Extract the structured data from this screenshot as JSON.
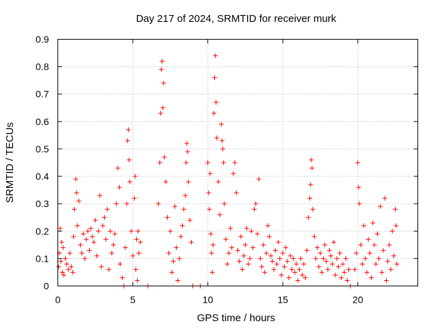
{
  "chart_data": {
    "type": "scatter",
    "title": "Day 217 of 2024, SRMTID for receiver murk",
    "xlabel": "GPS time / hours",
    "ylabel": "SRMTID / TECUs",
    "xlim": [
      0,
      24
    ],
    "ylim": [
      0,
      0.9
    ],
    "xticks": [
      0,
      5,
      10,
      15,
      20
    ],
    "xtick_labels": [
      "0",
      "5",
      "10",
      "15",
      "20"
    ],
    "yticks": [
      0,
      0.1,
      0.2,
      0.3,
      0.4,
      0.5,
      0.6,
      0.7,
      0.8,
      0.9
    ],
    "ytick_labels": [
      "0",
      "0.1",
      "0.2",
      "0.3",
      "0.4",
      "0.5",
      "0.6",
      "0.7",
      "0.8",
      "0.9"
    ],
    "grid": true,
    "marker": "plus",
    "color": "#ff0000",
    "series": [
      {
        "points": [
          [
            0.05,
            0.07
          ],
          [
            0.1,
            0.12
          ],
          [
            0.15,
            0.21
          ],
          [
            0.2,
            0.09
          ],
          [
            0.25,
            0.16
          ],
          [
            0.3,
            0.05
          ],
          [
            0.35,
            0.14
          ],
          [
            0.4,
            0.04
          ],
          [
            0.5,
            0.1
          ],
          [
            0.6,
            0.08
          ],
          [
            0.7,
            0.06
          ],
          [
            0.8,
            0.12
          ],
          [
            0.9,
            0.07
          ],
          [
            1.0,
            0.05
          ],
          [
            1.05,
            0.18
          ],
          [
            1.1,
            0.28
          ],
          [
            1.2,
            0.39
          ],
          [
            1.25,
            0.34
          ],
          [
            1.3,
            0.22
          ],
          [
            1.4,
            0.31
          ],
          [
            1.5,
            0.15
          ],
          [
            1.6,
            0.12
          ],
          [
            1.7,
            0.19
          ],
          [
            1.8,
            0.1
          ],
          [
            1.9,
            0.17
          ],
          [
            2.0,
            0.2
          ],
          [
            2.1,
            0.13
          ],
          [
            2.2,
            0.21
          ],
          [
            2.3,
            0.18
          ],
          [
            2.4,
            0.16
          ],
          [
            2.5,
            0.24
          ],
          [
            2.6,
            0.11
          ],
          [
            2.7,
            0.2
          ],
          [
            2.8,
            0.33
          ],
          [
            2.9,
            0.07
          ],
          [
            3.0,
            0.22
          ],
          [
            3.1,
            0.25
          ],
          [
            3.2,
            0.17
          ],
          [
            3.3,
            0.28
          ],
          [
            3.4,
            0.06
          ],
          [
            3.5,
            0.2
          ],
          [
            3.6,
            0.12
          ],
          [
            3.7,
            0.15
          ],
          [
            3.8,
            0.19
          ],
          [
            3.9,
            0.3
          ],
          [
            4.0,
            0.43
          ],
          [
            4.1,
            0.36
          ],
          [
            4.15,
            0.08
          ],
          [
            4.3,
            0.03
          ],
          [
            4.4,
            0.0
          ],
          [
            4.5,
            0.14
          ],
          [
            4.6,
            0.3
          ],
          [
            4.65,
            0.53
          ],
          [
            4.7,
            0.57
          ],
          [
            4.75,
            0.46
          ],
          [
            4.8,
            0.38
          ],
          [
            4.9,
            0.2
          ],
          [
            5.0,
            0.11
          ],
          [
            5.1,
            0.32
          ],
          [
            5.15,
            0.4
          ],
          [
            5.2,
            0.06
          ],
          [
            5.25,
            0.17
          ],
          [
            5.3,
            0.02
          ],
          [
            5.35,
            0.2
          ],
          [
            5.4,
            0.12
          ],
          [
            5.5,
            0.16
          ],
          [
            6.0,
            0.0
          ],
          [
            6.7,
            0.3
          ],
          [
            6.8,
            0.45
          ],
          [
            6.85,
            0.63
          ],
          [
            6.9,
            0.79
          ],
          [
            6.95,
            0.82
          ],
          [
            7.0,
            0.65
          ],
          [
            7.05,
            0.74
          ],
          [
            7.1,
            0.47
          ],
          [
            7.2,
            0.38
          ],
          [
            7.3,
            0.25
          ],
          [
            7.4,
            0.12
          ],
          [
            7.5,
            0.2
          ],
          [
            7.6,
            0.05
          ],
          [
            7.7,
            0.09
          ],
          [
            7.8,
            0.29
          ],
          [
            7.9,
            0.14
          ],
          [
            8.0,
            0.02
          ],
          [
            8.1,
            0.1
          ],
          [
            8.2,
            0.18
          ],
          [
            8.3,
            0.22
          ],
          [
            8.4,
            0.28
          ],
          [
            8.5,
            0.33
          ],
          [
            8.55,
            0.45
          ],
          [
            8.6,
            0.52
          ],
          [
            8.65,
            0.49
          ],
          [
            8.7,
            0.38
          ],
          [
            8.8,
            0.24
          ],
          [
            8.9,
            0.16
          ],
          [
            9.0,
            0.0
          ],
          [
            9.5,
            0.0
          ],
          [
            10.0,
            0.45
          ],
          [
            10.05,
            0.34
          ],
          [
            10.1,
            0.28
          ],
          [
            10.15,
            0.41
          ],
          [
            10.2,
            0.19
          ],
          [
            10.25,
            0.12
          ],
          [
            10.3,
            0.05
          ],
          [
            10.35,
            0.15
          ],
          [
            10.4,
            0.63
          ],
          [
            10.45,
            0.76
          ],
          [
            10.5,
            0.84
          ],
          [
            10.55,
            0.67
          ],
          [
            10.6,
            0.54
          ],
          [
            10.7,
            0.38
          ],
          [
            10.8,
            0.26
          ],
          [
            10.9,
            0.59
          ],
          [
            10.95,
            0.53
          ],
          [
            11.0,
            0.5
          ],
          [
            11.05,
            0.45
          ],
          [
            11.1,
            0.3
          ],
          [
            11.2,
            0.17
          ],
          [
            11.3,
            0.08
          ],
          [
            11.4,
            0.12
          ],
          [
            11.5,
            0.21
          ],
          [
            11.6,
            0.14
          ],
          [
            11.7,
            0.41
          ],
          [
            11.8,
            0.45
          ],
          [
            11.9,
            0.34
          ],
          [
            12.0,
            0.13
          ],
          [
            12.1,
            0.09
          ],
          [
            12.2,
            0.18
          ],
          [
            12.3,
            0.06
          ],
          [
            12.4,
            0.11
          ],
          [
            12.5,
            0.15
          ],
          [
            12.6,
            0.21
          ],
          [
            12.7,
            0.08
          ],
          [
            12.8,
            0.1
          ],
          [
            12.9,
            0.2
          ],
          [
            13.0,
            0.14
          ],
          [
            13.1,
            0.28
          ],
          [
            13.2,
            0.3
          ],
          [
            13.3,
            0.19
          ],
          [
            13.4,
            0.39
          ],
          [
            13.5,
            0.1
          ],
          [
            13.6,
            0.07
          ],
          [
            13.7,
            0.15
          ],
          [
            13.8,
            0.05
          ],
          [
            13.9,
            0.12
          ],
          [
            14.0,
            0.22
          ],
          [
            14.1,
            0.18
          ],
          [
            14.2,
            0.11
          ],
          [
            14.3,
            0.09
          ],
          [
            14.4,
            0.06
          ],
          [
            14.5,
            0.13
          ],
          [
            14.6,
            0.08
          ],
          [
            14.7,
            0.16
          ],
          [
            14.8,
            0.1
          ],
          [
            14.9,
            0.04
          ],
          [
            15.0,
            0.12
          ],
          [
            15.1,
            0.07
          ],
          [
            15.2,
            0.14
          ],
          [
            15.3,
            0.09
          ],
          [
            15.4,
            0.03
          ],
          [
            15.5,
            0.11
          ],
          [
            15.6,
            0.06
          ],
          [
            15.7,
            0.1
          ],
          [
            15.8,
            0.05
          ],
          [
            15.9,
            0.08
          ],
          [
            16.0,
            0.02
          ],
          [
            16.1,
            0.06
          ],
          [
            16.2,
            0.1
          ],
          [
            16.3,
            0.04
          ],
          [
            16.4,
            0.08
          ],
          [
            16.5,
            0.03
          ],
          [
            16.6,
            0.13
          ],
          [
            16.7,
            0.25
          ],
          [
            16.8,
            0.32
          ],
          [
            16.85,
            0.37
          ],
          [
            16.9,
            0.46
          ],
          [
            16.95,
            0.43
          ],
          [
            17.0,
            0.28
          ],
          [
            17.1,
            0.18
          ],
          [
            17.2,
            0.1
          ],
          [
            17.3,
            0.14
          ],
          [
            17.4,
            0.07
          ],
          [
            17.5,
            0.12
          ],
          [
            17.6,
            0.05
          ],
          [
            17.7,
            0.1
          ],
          [
            17.8,
            0.15
          ],
          [
            17.9,
            0.09
          ],
          [
            18.0,
            0.06
          ],
          [
            18.1,
            0.13
          ],
          [
            18.2,
            0.11
          ],
          [
            18.3,
            0.08
          ],
          [
            18.4,
            0.16
          ],
          [
            18.5,
            0.04
          ],
          [
            18.6,
            0.1
          ],
          [
            18.7,
            0.07
          ],
          [
            18.8,
            0.12
          ],
          [
            18.9,
            0.03
          ],
          [
            19.0,
            0.08
          ],
          [
            19.1,
            0.05
          ],
          [
            19.2,
            0.1
          ],
          [
            19.3,
            0.02
          ],
          [
            19.4,
            0.06
          ],
          [
            19.5,
            0.0
          ],
          [
            19.8,
            0.06
          ],
          [
            19.9,
            0.12
          ],
          [
            20.0,
            0.45
          ],
          [
            20.05,
            0.36
          ],
          [
            20.1,
            0.3
          ],
          [
            20.2,
            0.15
          ],
          [
            20.3,
            0.08
          ],
          [
            20.4,
            0.22
          ],
          [
            20.5,
            0.1
          ],
          [
            20.6,
            0.05
          ],
          [
            20.7,
            0.17
          ],
          [
            20.8,
            0.12
          ],
          [
            20.9,
            0.03
          ],
          [
            21.0,
            0.23
          ],
          [
            21.1,
            0.15
          ],
          [
            21.2,
            0.08
          ],
          [
            21.3,
            0.19
          ],
          [
            21.4,
            0.1
          ],
          [
            21.5,
            0.29
          ],
          [
            21.6,
            0.05
          ],
          [
            21.7,
            0.13
          ],
          [
            21.8,
            0.32
          ],
          [
            21.9,
            0.02
          ],
          [
            22.0,
            0.09
          ],
          [
            22.1,
            0.15
          ],
          [
            22.2,
            0.06
          ],
          [
            22.3,
            0.2
          ],
          [
            22.4,
            0.11
          ],
          [
            22.5,
            0.28
          ],
          [
            22.55,
            0.22
          ],
          [
            22.6,
            0.08
          ]
        ]
      }
    ]
  }
}
